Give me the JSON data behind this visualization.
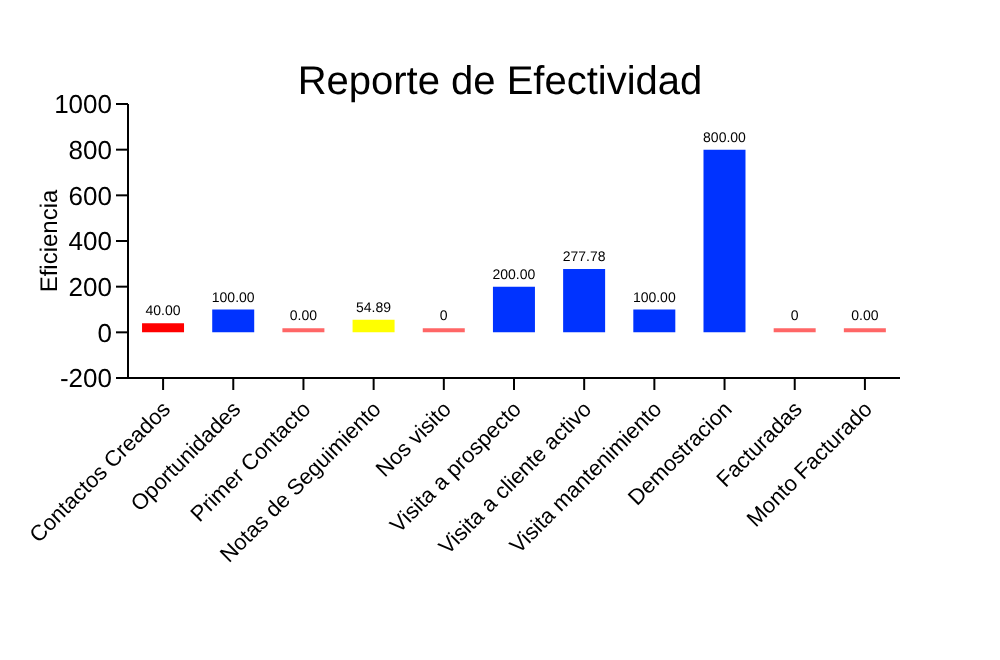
{
  "chart_data": {
    "type": "bar",
    "title": "Reporte de Efectividad",
    "ylabel": "Eficiencia",
    "categories": [
      "Contactos Creados",
      "Oportunidades",
      "Primer Contacto",
      "Notas de Seguimiento",
      "Nos visito",
      "Visita a prospecto",
      "Visita a cliente activo",
      "Visita mantenimiento",
      "Demostracion",
      "Facturadas",
      "Monto Facturado"
    ],
    "values": [
      40,
      100,
      0,
      54.89,
      0,
      200,
      277.78,
      100,
      800,
      0,
      0
    ],
    "colors": [
      "#ff0000",
      "#0033ff",
      "#ff6666",
      "#ffff00",
      "#ff6666",
      "#0033ff",
      "#0033ff",
      "#0033ff",
      "#0033ff",
      "#ff6666",
      "#ff6666"
    ],
    "value_labels": [
      "40.00",
      "100.00",
      "0.00",
      "54.89",
      "0",
      "200.00",
      "277.78",
      "100.00",
      "800.00",
      "0",
      "0.00"
    ],
    "ylim": [
      -200,
      1000
    ],
    "yticks": [
      -200,
      0,
      200,
      400,
      600,
      800,
      1000
    ],
    "grid": false,
    "legend": false
  }
}
